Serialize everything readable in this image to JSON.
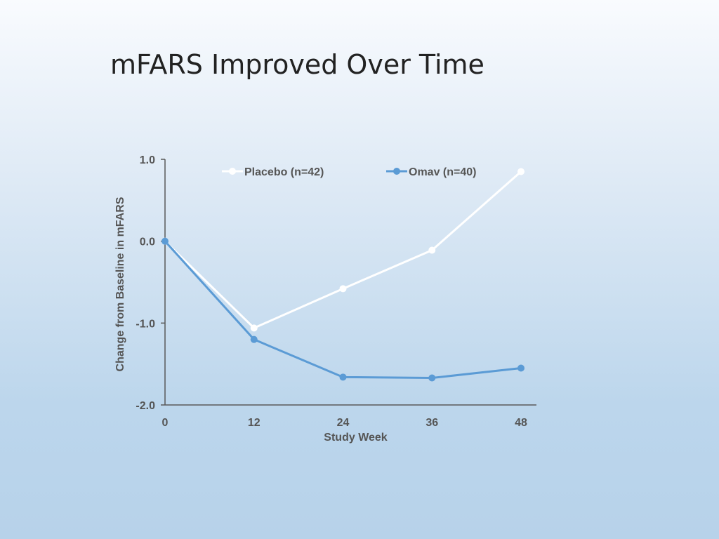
{
  "slide": {
    "title": "mFARS Improved Over Time"
  },
  "chart_data": {
    "type": "line",
    "x": [
      0,
      12,
      24,
      36,
      48
    ],
    "xlabel": "Study Week",
    "ylabel": "Change from Baseline in mFARS",
    "xlim": [
      0,
      48
    ],
    "ylim": [
      -2.0,
      1.0
    ],
    "x_ticks": [
      "0",
      "12",
      "24",
      "36",
      "48"
    ],
    "y_ticks": [
      {
        "value": 1.0,
        "label": "1.0"
      },
      {
        "value": 0.0,
        "label": "0.0"
      },
      {
        "value": -1.0,
        "label": "-1.0"
      },
      {
        "value": -2.0,
        "label": "-2.0"
      }
    ],
    "grid": false,
    "legend_position": "top",
    "series": [
      {
        "name": "Placebo (n=42)",
        "color": "#ffffff",
        "values": [
          0.0,
          -1.06,
          -0.58,
          -0.11,
          0.85
        ]
      },
      {
        "name": "Omav (n=40)",
        "color": "#5b9bd5",
        "values": [
          0.0,
          -1.2,
          -1.66,
          -1.67,
          -1.55
        ]
      }
    ]
  }
}
